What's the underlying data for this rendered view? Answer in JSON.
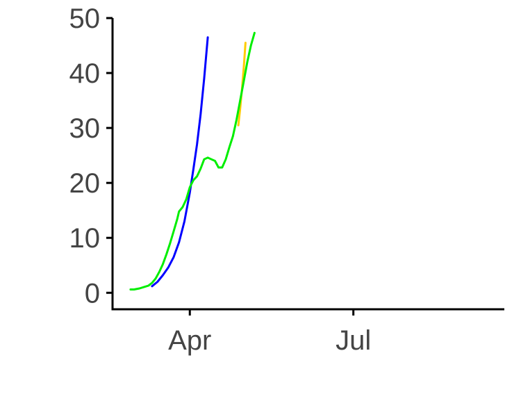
{
  "chart_data": {
    "type": "line",
    "title": "",
    "xlabel": "",
    "ylabel": "",
    "x_axis": {
      "type": "date",
      "range": [
        "2020-02-18",
        "2020-09-23"
      ],
      "ticks": [
        {
          "date": "2020-04-01",
          "label": "Apr"
        },
        {
          "date": "2020-07-01",
          "label": "Jul"
        }
      ]
    },
    "y_axis": {
      "range": [
        -3,
        50
      ],
      "ticks": [
        0,
        10,
        20,
        30,
        40,
        50
      ]
    },
    "grid": false,
    "legend": "none",
    "series": [
      {
        "color": "#0000ff",
        "points": [
          [
            "2020-03-11",
            1.2
          ],
          [
            "2020-03-14",
            2.0
          ],
          [
            "2020-03-17",
            3.2
          ],
          [
            "2020-03-20",
            4.6
          ],
          [
            "2020-03-23",
            6.5
          ],
          [
            "2020-03-26",
            9.2
          ],
          [
            "2020-03-29",
            13.0
          ],
          [
            "2020-04-01",
            18.2
          ],
          [
            "2020-04-03",
            22.5
          ],
          [
            "2020-04-05",
            27.0
          ],
          [
            "2020-04-07",
            32.5
          ],
          [
            "2020-04-09",
            39.0
          ],
          [
            "2020-04-11",
            46.5
          ]
        ]
      },
      {
        "color": "#ffcc00",
        "points": [
          [
            "2020-04-28",
            30.5
          ],
          [
            "2020-04-29",
            33.5
          ],
          [
            "2020-04-30",
            37.0
          ],
          [
            "2020-05-01",
            41.0
          ],
          [
            "2020-05-02",
            45.5
          ]
        ]
      },
      {
        "color": "#00ee00",
        "points": [
          [
            "2020-02-28",
            0.6
          ],
          [
            "2020-03-01",
            0.6
          ],
          [
            "2020-03-04",
            0.8
          ],
          [
            "2020-03-07",
            1.1
          ],
          [
            "2020-03-09",
            1.3
          ],
          [
            "2020-03-11",
            1.8
          ],
          [
            "2020-03-13",
            2.6
          ],
          [
            "2020-03-15",
            3.8
          ],
          [
            "2020-03-17",
            5.2
          ],
          [
            "2020-03-19",
            7.0
          ],
          [
            "2020-03-21",
            9.0
          ],
          [
            "2020-03-23",
            11.2
          ],
          [
            "2020-03-25",
            13.4
          ],
          [
            "2020-03-26",
            14.8
          ],
          [
            "2020-03-28",
            15.6
          ],
          [
            "2020-03-30",
            17.0
          ],
          [
            "2020-04-01",
            19.2
          ],
          [
            "2020-04-03",
            20.5
          ],
          [
            "2020-04-05",
            21.2
          ],
          [
            "2020-04-07",
            22.6
          ],
          [
            "2020-04-09",
            24.3
          ],
          [
            "2020-04-11",
            24.6
          ],
          [
            "2020-04-13",
            24.3
          ],
          [
            "2020-04-15",
            24.0
          ],
          [
            "2020-04-17",
            22.8
          ],
          [
            "2020-04-19",
            22.8
          ],
          [
            "2020-04-21",
            24.3
          ],
          [
            "2020-04-23",
            26.5
          ],
          [
            "2020-04-25",
            28.5
          ],
          [
            "2020-04-27",
            31.5
          ],
          [
            "2020-04-29",
            35.0
          ],
          [
            "2020-05-01",
            38.5
          ],
          [
            "2020-05-03",
            42.0
          ],
          [
            "2020-05-05",
            45.0
          ],
          [
            "2020-05-07",
            47.3
          ]
        ]
      }
    ]
  }
}
